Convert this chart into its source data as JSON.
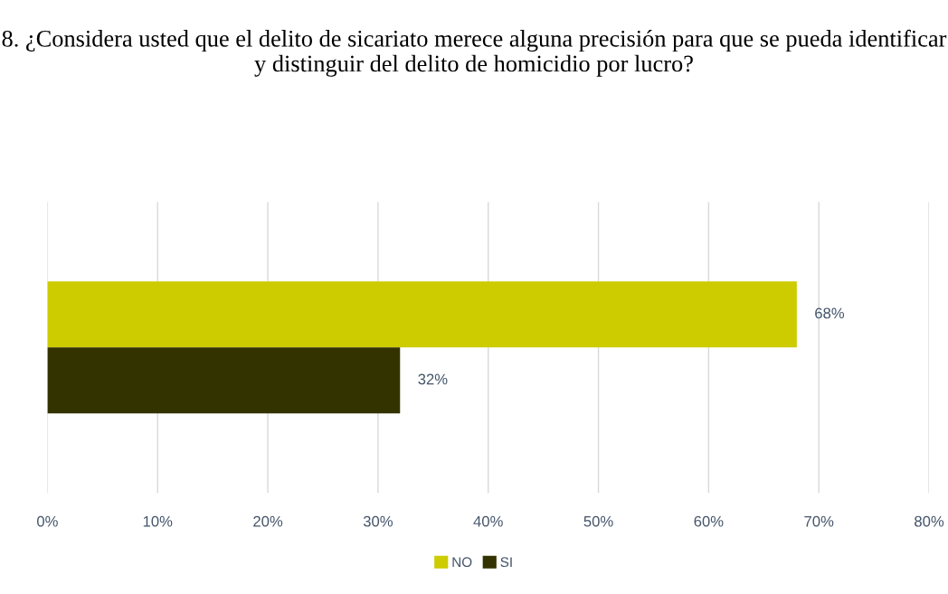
{
  "chart_data": {
    "type": "bar",
    "orientation": "horizontal",
    "title": "8. ¿Considera usted que el delito de sicariato merece alguna precisión para que se pueda identificar y distinguir del delito de homicidio por lucro?",
    "categories": [
      null
    ],
    "series": [
      {
        "name": "NO",
        "color": "#cccc00",
        "values": [
          68
        ],
        "value_labels": [
          "68%"
        ]
      },
      {
        "name": "SI",
        "color": "#333300",
        "values": [
          32
        ],
        "value_labels": [
          "32%"
        ]
      }
    ],
    "xlim": [
      0,
      80
    ],
    "xticks": [
      {
        "value": 0,
        "label": "0%"
      },
      {
        "value": 10,
        "label": "10%"
      },
      {
        "value": 20,
        "label": "20%"
      },
      {
        "value": 30,
        "label": "30%"
      },
      {
        "value": 40,
        "label": "40%"
      },
      {
        "value": 50,
        "label": "50%"
      },
      {
        "value": 60,
        "label": "60%"
      },
      {
        "value": 70,
        "label": "70%"
      },
      {
        "value": 80,
        "label": "80%"
      }
    ],
    "grid": "x",
    "legend": "bottom"
  }
}
